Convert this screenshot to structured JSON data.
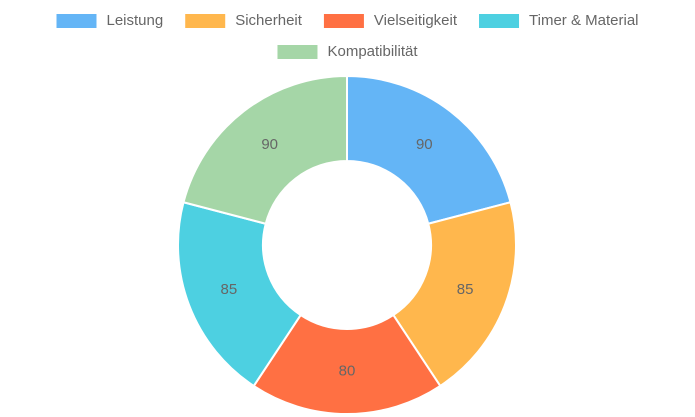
{
  "chart_data": {
    "type": "doughnut",
    "categories": [
      "Leistung",
      "Sicherheit",
      "Vielseitigkeit",
      "Timer & Material",
      "Kompatibilität"
    ],
    "values": [
      90,
      85,
      80,
      85,
      90
    ],
    "colors": [
      "#64b5f6",
      "#ffb74d",
      "#ff7043",
      "#4dd0e1",
      "#a5d6a7"
    ],
    "legend": "top"
  }
}
